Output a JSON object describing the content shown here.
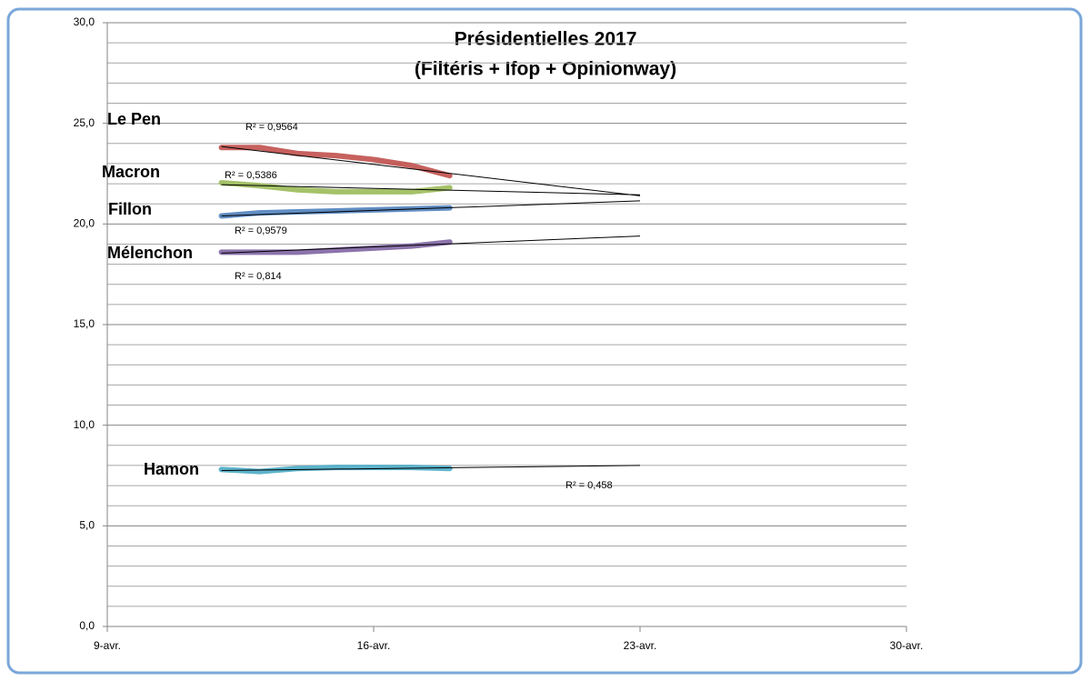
{
  "chart_data": {
    "type": "line",
    "title": [
      "Présidentielles 2017",
      "(Filtéris + Ifop + Opinionway)"
    ],
    "x": [
      12,
      13,
      14,
      15,
      16,
      17,
      18
    ],
    "xlim": [
      9,
      30
    ],
    "xticks": [
      {
        "value": 9,
        "label": "9-avr."
      },
      {
        "value": 16,
        "label": "16-avr."
      },
      {
        "value": 23,
        "label": "23-avr."
      },
      {
        "value": 30,
        "label": "30-avr."
      }
    ],
    "ylim": [
      0,
      30
    ],
    "yticks": [
      {
        "value": 0,
        "label": "0,0"
      },
      {
        "value": 5,
        "label": "5,0"
      },
      {
        "value": 10,
        "label": "10,0"
      },
      {
        "value": 15,
        "label": "15,0"
      },
      {
        "value": 20,
        "label": "20,0"
      },
      {
        "value": 25,
        "label": "25,0"
      },
      {
        "value": 30,
        "label": "30,0"
      }
    ],
    "y_minor_ticks": [
      1,
      2,
      3,
      4,
      6,
      7,
      8,
      9,
      11,
      12,
      13,
      14,
      16,
      17,
      18,
      19,
      21,
      22,
      23,
      24,
      26,
      27,
      28,
      29
    ],
    "grid": true,
    "series": [
      {
        "name": "Le Pen",
        "color": "#c0504d",
        "values": [
          23.8,
          23.8,
          23.5,
          23.4,
          23.2,
          22.9,
          22.4
        ],
        "trendline": {
          "x": [
            12,
            23
          ],
          "values": [
            23.85,
            21.4
          ],
          "label": "R² = 0,9564"
        }
      },
      {
        "name": "Macron",
        "color": "#9bbb59",
        "values": [
          22.05,
          21.9,
          21.7,
          21.6,
          21.6,
          21.6,
          21.8
        ],
        "trendline": {
          "x": [
            12,
            23
          ],
          "values": [
            21.95,
            21.45
          ],
          "label": "R² = 0,5386"
        }
      },
      {
        "name": "Fillon",
        "color": "#4f81bd",
        "values": [
          20.4,
          20.55,
          20.6,
          20.65,
          20.7,
          20.75,
          20.8
        ],
        "trendline": {
          "x": [
            12,
            23
          ],
          "values": [
            20.4,
            21.15
          ],
          "label": "R² = 0,9579"
        }
      },
      {
        "name": "Mélenchon",
        "color": "#8064a2",
        "values": [
          18.6,
          18.6,
          18.6,
          18.7,
          18.8,
          18.9,
          19.1
        ],
        "trendline": {
          "x": [
            12,
            23
          ],
          "values": [
            18.55,
            19.4
          ],
          "label": "R² = 0,814"
        }
      },
      {
        "name": "Hamon",
        "color": "#4bacc6",
        "values": [
          7.8,
          7.7,
          7.85,
          7.9,
          7.9,
          7.9,
          7.85
        ],
        "trendline": {
          "x": [
            12,
            23
          ],
          "values": [
            7.75,
            8.0
          ],
          "label": "R² = 0,458"
        }
      }
    ]
  }
}
